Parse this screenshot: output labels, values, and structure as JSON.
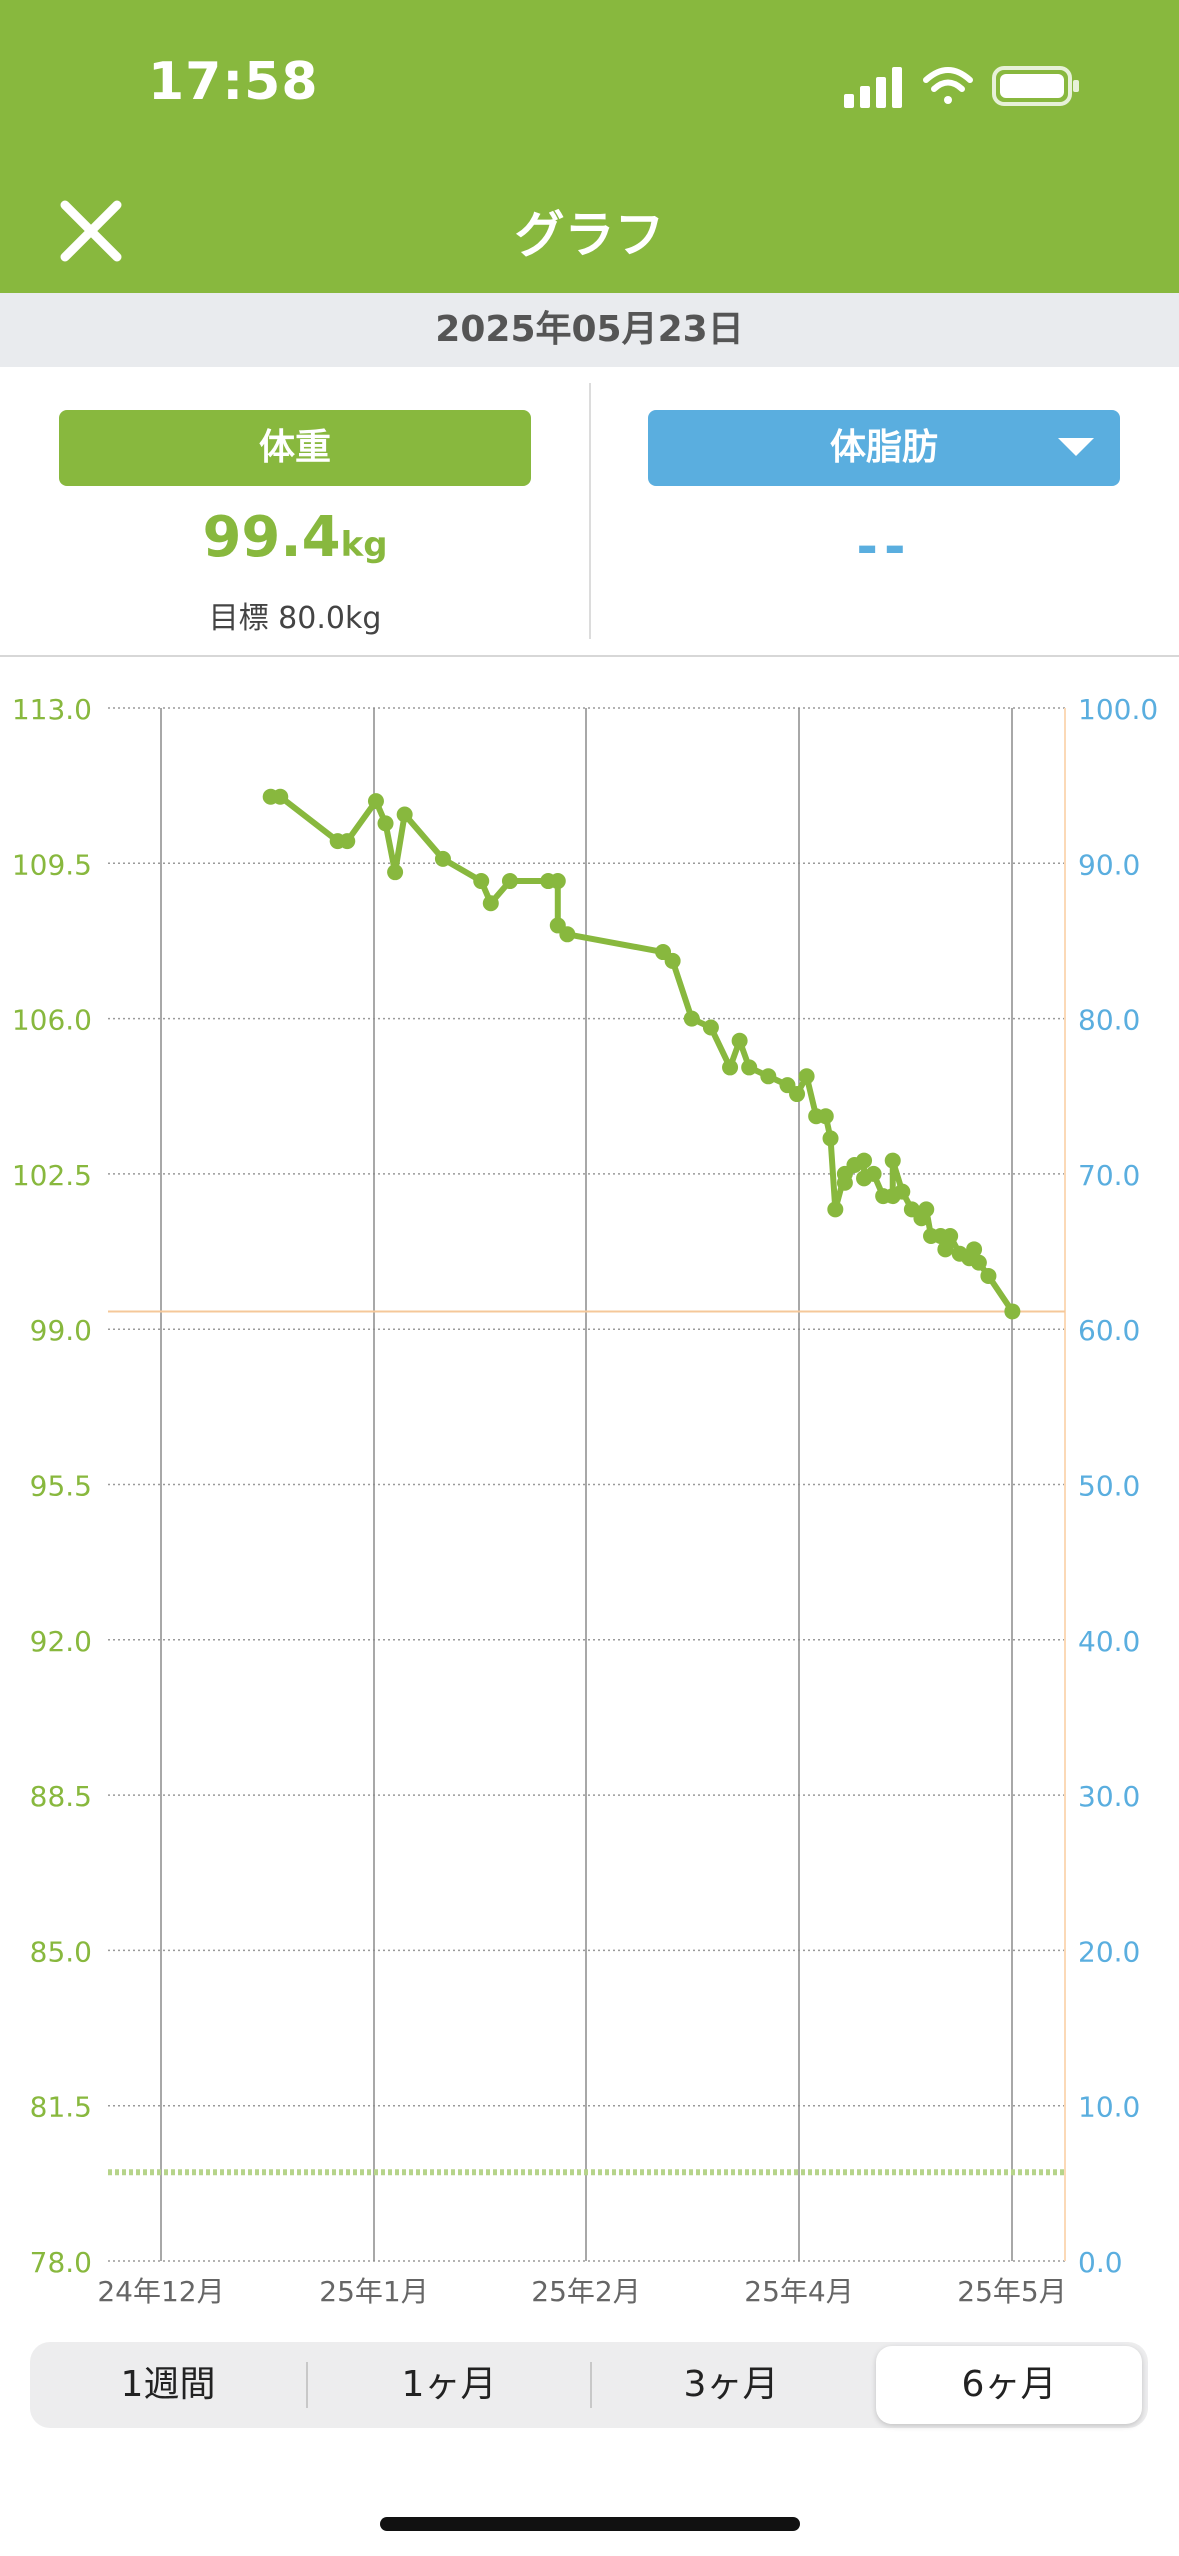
{
  "status": {
    "time": "17:58"
  },
  "nav": {
    "title": "グラフ",
    "close_icon": "close-icon"
  },
  "date": "2025年05月23日",
  "summary": {
    "weight_label": "体重",
    "weight_value": "99.4",
    "weight_unit": "kg",
    "goal": "目標 80.0kg",
    "fat_label": "体脂肪",
    "fat_value": "--"
  },
  "colors": {
    "brand_green": "#88b83e",
    "fat_blue": "#5aaedf",
    "current_line": "#f5c89a",
    "date_bar_bg": "#e9ebee"
  },
  "chart_data": {
    "type": "line",
    "left_axis": {
      "ticks": [
        "113.0",
        "109.5",
        "106.0",
        "102.5",
        "99.0",
        "95.5",
        "92.0",
        "88.5",
        "85.0",
        "81.5",
        "78.0"
      ],
      "range": [
        78.0,
        113.0
      ]
    },
    "right_axis": {
      "ticks": [
        "100.0",
        "90.0",
        "80.0",
        "70.0",
        "60.0",
        "50.0",
        "40.0",
        "30.0",
        "20.0",
        "10.0",
        "0.0"
      ],
      "range": [
        0,
        100
      ]
    },
    "x_ticks": [
      "24年12月",
      "25年1月",
      "25年2月",
      "25年4月",
      "25年5月"
    ],
    "goal_weight": 80.0,
    "current_weight": 99.4,
    "series": [
      {
        "color": "#88b83e",
        "points": [
          [
            0.17,
            111.0
          ],
          [
            0.18,
            111.0
          ],
          [
            0.24,
            110.0
          ],
          [
            0.25,
            110.0
          ],
          [
            0.28,
            110.9
          ],
          [
            0.29,
            110.4
          ],
          [
            0.3,
            109.3
          ],
          [
            0.31,
            110.6
          ],
          [
            0.35,
            109.6
          ],
          [
            0.39,
            109.1
          ],
          [
            0.4,
            108.6
          ],
          [
            0.42,
            109.1
          ],
          [
            0.46,
            109.1
          ],
          [
            0.47,
            109.1
          ],
          [
            0.47,
            108.1
          ],
          [
            0.48,
            107.9
          ],
          [
            0.58,
            107.5
          ],
          [
            0.59,
            107.3
          ],
          [
            0.61,
            106.0
          ],
          [
            0.63,
            105.8
          ],
          [
            0.65,
            104.9
          ],
          [
            0.66,
            105.5
          ],
          [
            0.67,
            104.9
          ],
          [
            0.69,
            104.7
          ],
          [
            0.71,
            104.5
          ],
          [
            0.72,
            104.3
          ],
          [
            0.73,
            104.7
          ],
          [
            0.74,
            103.8
          ],
          [
            0.75,
            103.8
          ],
          [
            0.755,
            103.3
          ],
          [
            0.76,
            101.7
          ],
          [
            0.77,
            102.5
          ],
          [
            0.77,
            102.3
          ],
          [
            0.78,
            102.7
          ],
          [
            0.79,
            102.8
          ],
          [
            0.79,
            102.4
          ],
          [
            0.8,
            102.5
          ],
          [
            0.81,
            102.0
          ],
          [
            0.82,
            102.0
          ],
          [
            0.82,
            102.8
          ],
          [
            0.83,
            102.1
          ],
          [
            0.84,
            101.7
          ],
          [
            0.85,
            101.5
          ],
          [
            0.855,
            101.7
          ],
          [
            0.86,
            101.1
          ],
          [
            0.87,
            101.1
          ],
          [
            0.875,
            100.8
          ],
          [
            0.88,
            101.1
          ],
          [
            0.89,
            100.7
          ],
          [
            0.9,
            100.6
          ],
          [
            0.905,
            100.8
          ],
          [
            0.91,
            100.5
          ],
          [
            0.92,
            100.2
          ],
          [
            0.945,
            99.4
          ]
        ]
      }
    ]
  },
  "tabs": [
    "1週間",
    "1ヶ月",
    "3ヶ月",
    "6ヶ月"
  ],
  "selected_tab": "6ヶ月"
}
